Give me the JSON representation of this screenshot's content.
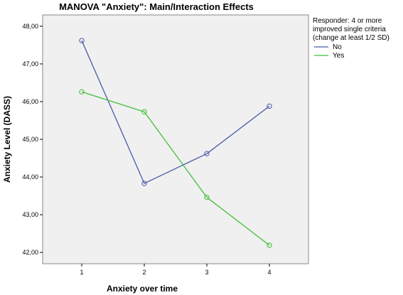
{
  "chart_data": {
    "type": "line",
    "title": "MANOVA \"Anxiety\": Main/Interaction Effects",
    "xlabel": "Anxiety over time",
    "ylabel": "Anxiety Level (DASS)",
    "x": [
      "1",
      "2",
      "3",
      "4"
    ],
    "ylim": [
      41.7,
      48.3
    ],
    "yticks": [
      "42,00",
      "43,00",
      "44,00",
      "45,00",
      "46,00",
      "47,00",
      "48,00"
    ],
    "ytick_values": [
      42,
      43,
      44,
      45,
      46,
      47,
      48
    ],
    "grid": false,
    "legend_position": "top-right",
    "legend_title": [
      "Responder: 4 or more",
      "improved single criteria",
      "(change at least 1/2 SD)"
    ],
    "series": [
      {
        "name": "No",
        "values": [
          47.62,
          43.83,
          44.62,
          45.88
        ],
        "color": "#4a5aa8"
      },
      {
        "name": "Yes",
        "values": [
          46.26,
          45.73,
          43.46,
          42.19
        ],
        "color": "#3fbf35"
      }
    ],
    "plot_background": "#f0f0f0",
    "marker": "open-circle"
  }
}
